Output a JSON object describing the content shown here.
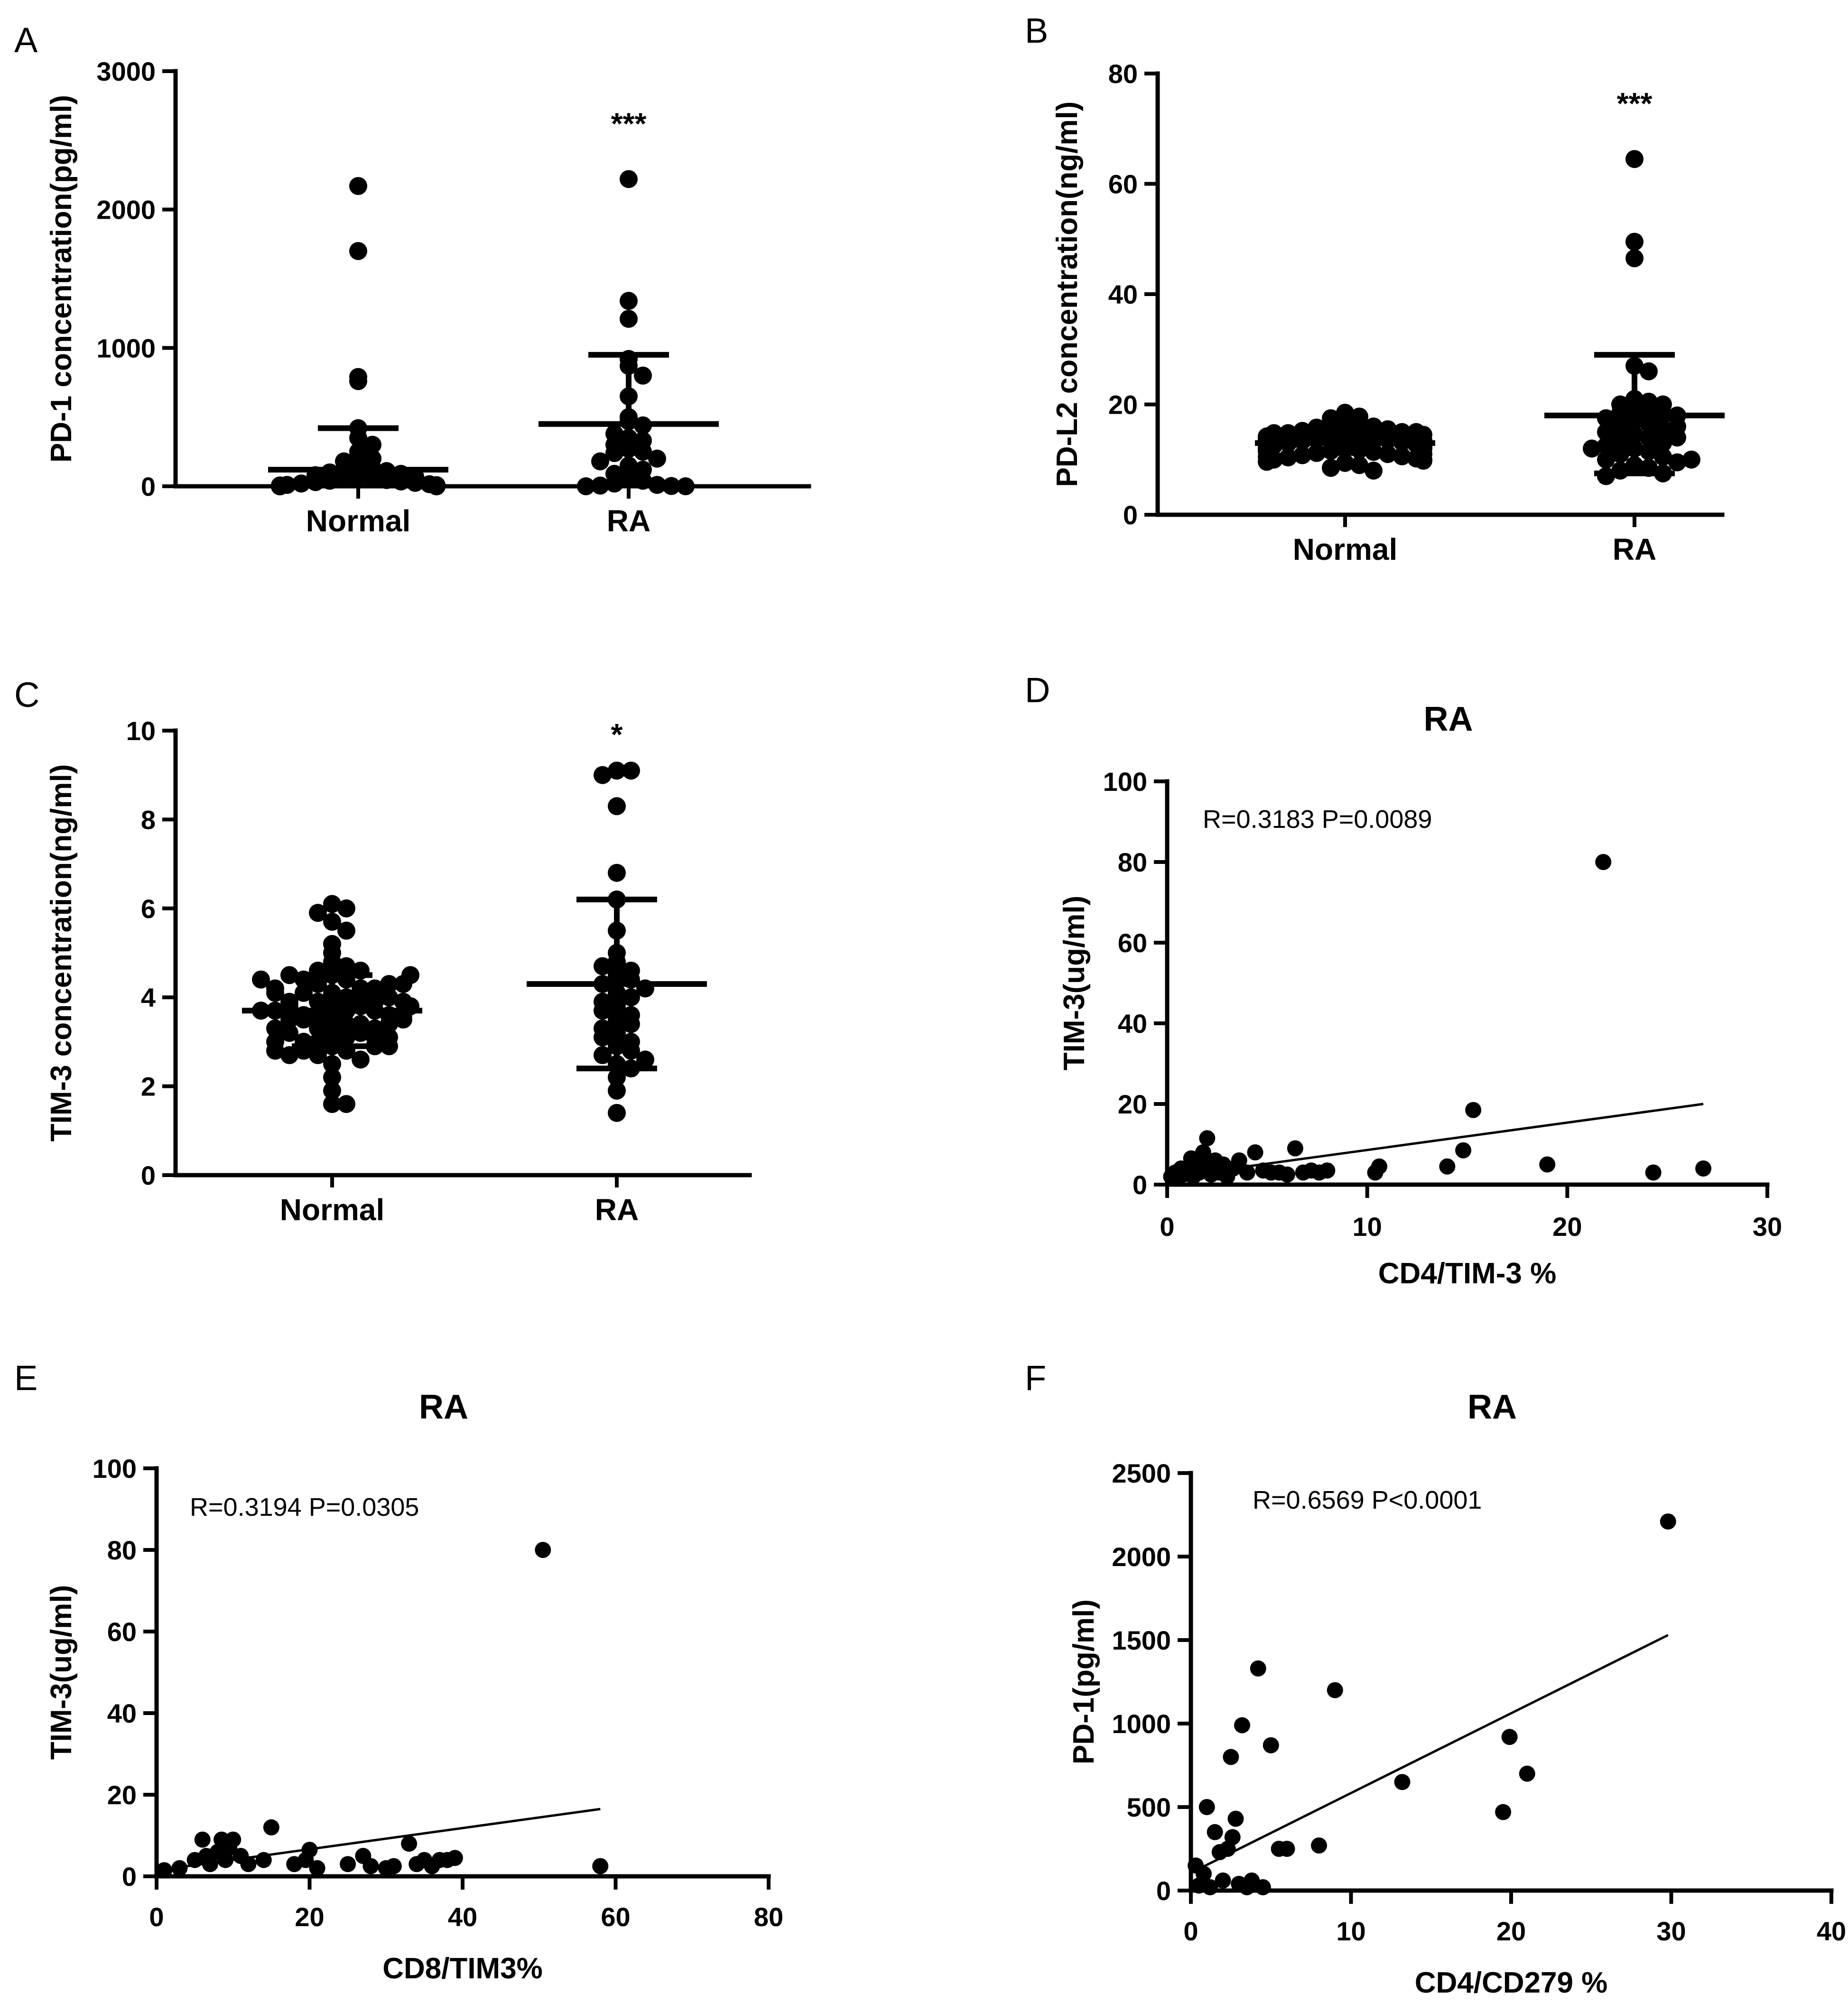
{
  "chart_data": [
    {
      "panel": "A",
      "type": "scatter",
      "subtype": "dot-plot",
      "ylabel": "PD-1 concentration(pg/ml)",
      "ylim": [
        0,
        3000
      ],
      "yticks": [
        0,
        1000,
        2000,
        3000
      ],
      "categories": [
        "Normal",
        "RA"
      ],
      "significance": [
        "",
        "***"
      ],
      "groups": [
        {
          "name": "Normal",
          "mean": 120,
          "sd_upper": 420,
          "sd_lower": 0,
          "values": [
            2170,
            1700,
            790,
            760,
            420,
            350,
            300,
            250,
            200,
            180,
            150,
            130,
            120,
            110,
            100,
            90,
            80,
            70,
            60,
            55,
            50,
            45,
            40,
            35,
            30,
            25,
            20,
            15,
            10,
            8,
            6,
            5,
            4,
            3,
            2,
            1,
            0,
            0,
            0,
            0,
            0,
            0,
            0,
            0,
            0,
            0,
            0,
            0,
            0,
            0,
            0,
            0,
            0,
            0
          ]
        },
        {
          "name": "RA",
          "mean": 450,
          "sd_upper": 950,
          "sd_lower": 0,
          "values": [
            2220,
            1340,
            1210,
            920,
            870,
            800,
            650,
            500,
            470,
            440,
            380,
            350,
            330,
            300,
            270,
            250,
            240,
            200,
            180,
            150,
            120,
            90,
            60,
            40,
            20,
            10,
            5,
            2,
            0,
            0
          ]
        }
      ]
    },
    {
      "panel": "B",
      "type": "scatter",
      "subtype": "dot-plot",
      "ylabel": "PD-L2 concentration(ng/ml)",
      "ylim": [
        0,
        80
      ],
      "yticks": [
        0,
        20,
        40,
        60,
        80
      ],
      "categories": [
        "Normal",
        "RA"
      ],
      "significance": [
        "",
        "***"
      ],
      "groups": [
        {
          "name": "Normal",
          "mean": 13,
          "sd_upper": 15.2,
          "sd_lower": 11.2,
          "values": [
            18.5,
            17.8,
            17.5,
            16.8,
            16.5,
            16.2,
            16.0,
            15.8,
            15.5,
            15.2,
            15.0,
            14.8,
            14.6,
            14.4,
            14.2,
            14.0,
            13.8,
            13.6,
            13.4,
            13.2,
            13.0,
            12.8,
            12.6,
            12.4,
            12.2,
            12.0,
            11.8,
            11.6,
            11.4,
            11.2,
            11.0,
            10.8,
            10.6,
            10.4,
            10.2,
            10.0,
            9.8,
            9.6,
            9.4,
            9.0,
            8.5,
            8.0,
            15.0,
            14.5,
            14.0,
            13.5,
            13.0,
            12.5,
            12.0,
            11.5,
            11.0,
            10.5,
            10.0,
            13.2,
            12.8,
            13.6,
            12.4,
            14.2,
            11.8,
            14.8
          ]
        },
        {
          "name": "RA",
          "mean": 18,
          "sd_upper": 29,
          "sd_lower": 7.5,
          "values": [
            64.5,
            49.5,
            46.5,
            27,
            26,
            21,
            20.5,
            20,
            19.5,
            19,
            18.5,
            18,
            17.5,
            17,
            16.5,
            16,
            15.5,
            15,
            14.5,
            14,
            13.5,
            13,
            12.5,
            12,
            11.5,
            11,
            10.5,
            10,
            9.5,
            9,
            8.5,
            8,
            7.5,
            7,
            20,
            18,
            16,
            14,
            12,
            10
          ]
        }
      ]
    },
    {
      "panel": "C",
      "type": "scatter",
      "subtype": "dot-plot",
      "ylabel": "TIM-3 concentration(ng/ml)",
      "ylim": [
        0,
        10
      ],
      "yticks": [
        0,
        2,
        4,
        6,
        8,
        10
      ],
      "categories": [
        "Normal",
        "RA"
      ],
      "significance": [
        "",
        "*"
      ],
      "groups": [
        {
          "name": "Normal",
          "mean": 3.7,
          "sd_upper": 4.5,
          "sd_lower": 2.9,
          "values": [
            6.1,
            6.0,
            5.9,
            5.7,
            5.5,
            5.2,
            5.0,
            4.8,
            4.7,
            4.6,
            4.5,
            4.4,
            4.3,
            4.2,
            4.1,
            4.0,
            3.9,
            3.8,
            3.7,
            3.6,
            3.5,
            3.4,
            3.3,
            3.2,
            3.1,
            3.0,
            2.9,
            2.8,
            2.7,
            2.6,
            2.5,
            2.2,
            1.9,
            1.6,
            1.6,
            4.6,
            4.4,
            4.2,
            4.0,
            3.8,
            3.6,
            3.4,
            3.2,
            3.0,
            2.8,
            4.5,
            4.3,
            4.1,
            3.9,
            3.7,
            3.5,
            3.3,
            3.1,
            2.9,
            2.7,
            3.8,
            3.6,
            3.7,
            3.5,
            3.9,
            3.4,
            4.0,
            3.3,
            4.1,
            3.2,
            4.2,
            3.1,
            4.3,
            3.0,
            4.4,
            2.9,
            4.5,
            2.8,
            3.6,
            3.7,
            3.8,
            3.9,
            3.5
          ]
        },
        {
          "name": "RA",
          "mean": 4.3,
          "sd_upper": 6.2,
          "sd_lower": 2.4,
          "values": [
            9.1,
            9.1,
            9.0,
            8.3,
            6.8,
            6.2,
            5.5,
            5.0,
            4.8,
            4.6,
            4.5,
            4.4,
            4.3,
            4.2,
            4.1,
            4.0,
            3.9,
            3.8,
            3.6,
            3.5,
            3.4,
            3.3,
            3.2,
            3.0,
            2.9,
            2.8,
            2.7,
            2.5,
            2.4,
            2.2,
            1.9,
            1.4,
            4.7,
            3.7,
            3.1,
            2.6
          ]
        }
      ]
    },
    {
      "panel": "D",
      "type": "scatter",
      "title": "RA",
      "annotation": "R=0.3183  P=0.0089",
      "xlabel": "CD4/TIM-3 %",
      "ylabel": "TIM-3(ug/ml)",
      "xlim": [
        0,
        30
      ],
      "ylim": [
        0,
        100
      ],
      "xticks": [
        0,
        10,
        20,
        30
      ],
      "yticks": [
        0,
        20,
        40,
        60,
        80,
        100
      ],
      "fit_line": {
        "x": [
          0.3,
          26.8
        ],
        "y": [
          2.0,
          20.0
        ]
      },
      "x": [
        0.2,
        0.4,
        0.5,
        0.7,
        0.8,
        1.0,
        1.2,
        1.3,
        1.5,
        1.6,
        1.8,
        2.0,
        2.1,
        2.2,
        2.4,
        2.6,
        2.8,
        3.0,
        3.3,
        3.6,
        4.0,
        4.4,
        4.8,
        5.2,
        5.6,
        6.0,
        6.4,
        6.8,
        7.2,
        7.6,
        8.0,
        10.4,
        10.6,
        14.8,
        15.3,
        21.8,
        14.0,
        19.0,
        24.3,
        26.8
      ],
      "y": [
        2.0,
        3.0,
        1.5,
        4.0,
        2.5,
        3.5,
        6.5,
        2.0,
        5.0,
        3.0,
        8.0,
        11.5,
        4.5,
        2.5,
        6.0,
        3.0,
        5.0,
        2.0,
        4.0,
        6.0,
        3.0,
        8.0,
        3.5,
        3.0,
        3.0,
        2.5,
        9.0,
        3.0,
        3.5,
        3.0,
        3.5,
        3.0,
        4.5,
        8.5,
        18.5,
        80.0,
        4.5,
        5.0,
        3.0,
        4.0
      ]
    },
    {
      "panel": "E",
      "type": "scatter",
      "title": "RA",
      "annotation": "R=0.3194  P=0.0305",
      "xlabel": "CD8/TIM3%",
      "ylabel": "TIM-3(ug/ml)",
      "xlim": [
        0,
        80
      ],
      "ylim": [
        0,
        100
      ],
      "xticks": [
        0,
        20,
        40,
        60,
        80
      ],
      "yticks": [
        0,
        20,
        40,
        60,
        80,
        100
      ],
      "fit_line": {
        "x": [
          4,
          58
        ],
        "y": [
          2.5,
          16.5
        ]
      },
      "x": [
        1,
        3,
        5,
        6,
        6.5,
        7,
        8,
        8.5,
        9,
        9.5,
        10,
        11,
        12,
        14,
        15,
        18,
        19.5,
        20,
        21,
        25,
        27,
        28,
        30,
        31,
        33,
        34,
        35,
        36,
        37,
        38,
        39,
        50.5,
        58
      ],
      "y": [
        1.5,
        2.0,
        4.0,
        9.0,
        5.0,
        3.0,
        6.0,
        9.0,
        4.0,
        7.0,
        9.0,
        5.0,
        3.0,
        4.0,
        12.0,
        3.0,
        4.0,
        6.5,
        2.0,
        3.0,
        5.0,
        2.5,
        2.0,
        2.5,
        8.0,
        3.0,
        4.0,
        2.5,
        4.0,
        4.0,
        4.5,
        80.0,
        2.5
      ]
    },
    {
      "panel": "F",
      "type": "scatter",
      "title": "RA",
      "annotation": "R=0.6569 P<0.0001",
      "xlabel": "CD4/CD279 %",
      "ylabel": "PD-1(pg/ml)",
      "xlim": [
        0,
        40
      ],
      "ylim": [
        0,
        2500
      ],
      "xticks": [
        0,
        10,
        20,
        30,
        40
      ],
      "yticks": [
        0,
        500,
        1000,
        1500,
        2000,
        2500
      ],
      "fit_line": {
        "x": [
          0.5,
          29.8
        ],
        "y": [
          130,
          1530
        ]
      },
      "x": [
        0.3,
        0.5,
        0.8,
        1.0,
        1.2,
        1.5,
        1.8,
        2.0,
        2.3,
        2.5,
        2.6,
        2.8,
        3.0,
        3.2,
        3.5,
        3.8,
        4.2,
        4.5,
        5.0,
        5.5,
        6.0,
        8.0,
        9.0,
        13.2,
        19.5,
        19.9,
        21.0,
        29.8
      ],
      "y": [
        150,
        30,
        100,
        500,
        20,
        350,
        230,
        60,
        250,
        800,
        320,
        430,
        40,
        990,
        20,
        60,
        1330,
        20,
        870,
        250,
        250,
        270,
        1200,
        650,
        470,
        920,
        700,
        2210
      ]
    }
  ]
}
